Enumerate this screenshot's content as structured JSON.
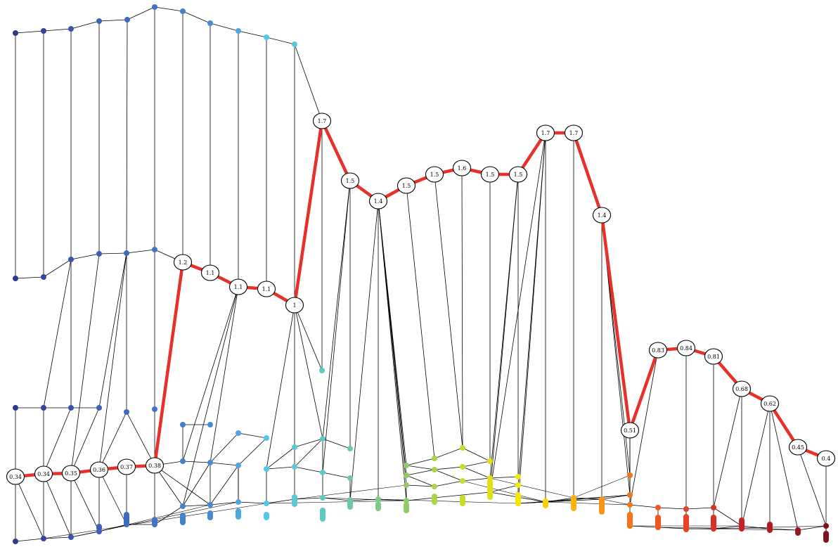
{
  "diagram": {
    "highlight_color": "#e8302a",
    "edge_color": "#000000",
    "node_fill": "#ffffff",
    "path_labels": [
      "0.34",
      "0.34",
      "0.35",
      "0.36",
      "0.37",
      "0.38",
      "1.2",
      "1.1",
      "1.1",
      "1.1",
      "1",
      "1.7",
      "1.5",
      "1.4",
      "1.5",
      "1.5",
      "1.6",
      "1.5",
      "1.5",
      "1.7",
      "1.7",
      "1.4",
      "0.51",
      "0.83",
      "0.84",
      "0.81",
      "0.68",
      "0.62",
      "0.45",
      "0.4"
    ]
  }
}
